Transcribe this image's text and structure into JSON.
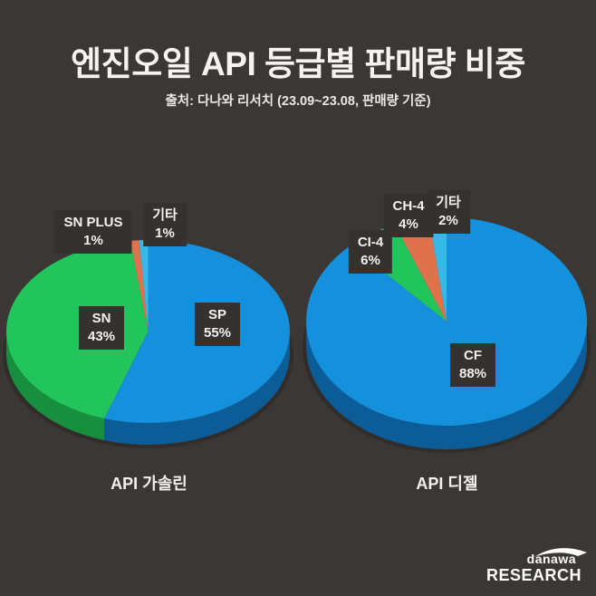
{
  "header": {
    "title": "엔진오일 API 등급별 판매량 비중",
    "source": "출처: 다나와 리서치 (23.09~23.08, 판매량 기준)"
  },
  "footer": {
    "logo_top": "danawa",
    "logo_bottom": "RESEARCH"
  },
  "colors": {
    "background": "#3b3734",
    "label_box": "#35312f",
    "text": "#f6f4f2",
    "blue": "#1490dd",
    "green": "#22c55b",
    "orange": "#e0714d",
    "cyan": "#35b9e8"
  },
  "chart_data": [
    {
      "type": "pie",
      "title": "API 가솔린",
      "labels": [
        "SP",
        "SN",
        "SN PLUS",
        "기타"
      ],
      "values": [
        55,
        43,
        1,
        1
      ],
      "unit": "%",
      "colors": [
        "#1490dd",
        "#22c55b",
        "#e0714d",
        "#35b9e8"
      ],
      "side_colors": [
        "#0c5c97",
        "#178f3e",
        "#a8542f",
        "#2488ad"
      ],
      "start_angle": 0,
      "direction": "clockwise",
      "style": "3d",
      "legend": "none",
      "label_format": "name + percent in dark box"
    },
    {
      "type": "pie",
      "title": "API 디젤",
      "labels": [
        "CF",
        "CI-4",
        "CH-4",
        "기타"
      ],
      "values": [
        88,
        6,
        4,
        2
      ],
      "unit": "%",
      "colors": [
        "#1490dd",
        "#22c55b",
        "#e0714d",
        "#35b9e8"
      ],
      "side_colors": [
        "#0c5c97",
        "#178f3e",
        "#a8542f",
        "#2488ad"
      ],
      "start_angle": 0,
      "direction": "clockwise",
      "style": "3d",
      "legend": "none",
      "label_format": "name + percent in dark box"
    }
  ]
}
